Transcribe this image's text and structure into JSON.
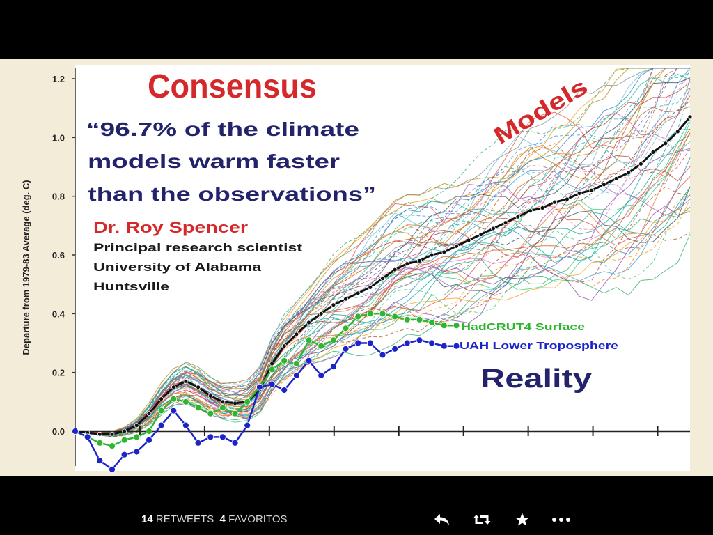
{
  "tweet": {
    "retweet_count": "14",
    "retweet_label": "RETWEETS",
    "favorite_count": "4",
    "favorite_label": "FAVORITOS"
  },
  "actions": [
    "reply-icon",
    "retweet-icon",
    "favorite-star-icon",
    "more-dots-icon"
  ],
  "colors": {
    "title_red": "#d4282a",
    "quote_navy": "#22236b",
    "models_mean": "#111111",
    "hadcrut_green": "#2fb52f",
    "uah_blue": "#1c23c8"
  },
  "image": {
    "title": "Consensus",
    "quote_lines": [
      "“96.7% of the climate",
      "models warm faster",
      "than the observations”"
    ],
    "author": "Dr. Roy Spencer",
    "affiliation_lines": [
      "Principal research scientist",
      "University of Alabama",
      "Huntsville"
    ],
    "models_label": "Models",
    "reality_label": "Reality",
    "hadcrut_label": "HadCRUT4 Surface",
    "uah_label": "UAH Lower Troposphere"
  },
  "chart_data": {
    "type": "line",
    "ylabel": "Departure from 1979-83 Average (deg. C)",
    "yticks": [
      "0.0",
      "0.2",
      "0.4",
      "0.6",
      "0.8",
      "1.0",
      "1.2"
    ],
    "ylim": [
      -0.12,
      1.24
    ],
    "x_range": [
      0,
      100
    ],
    "grid": false,
    "series": [
      {
        "name": "Models",
        "role": "multi-model mean",
        "x": [
          0,
          2,
          4,
          6,
          8,
          10,
          12,
          14,
          16,
          18,
          20,
          22,
          24,
          26,
          28,
          30,
          32,
          34,
          36,
          38,
          40,
          42,
          44,
          46,
          48,
          50,
          52,
          54,
          56,
          58,
          60,
          62,
          64,
          66,
          68,
          70,
          72,
          74,
          76,
          78,
          80,
          82,
          84,
          86,
          88,
          90,
          92,
          94,
          96,
          98,
          100
        ],
        "y": [
          0.0,
          -0.005,
          -0.01,
          -0.01,
          0.0,
          0.02,
          0.06,
          0.11,
          0.15,
          0.17,
          0.15,
          0.12,
          0.1,
          0.095,
          0.1,
          0.14,
          0.23,
          0.29,
          0.33,
          0.37,
          0.4,
          0.43,
          0.45,
          0.47,
          0.49,
          0.52,
          0.55,
          0.57,
          0.58,
          0.6,
          0.61,
          0.63,
          0.65,
          0.67,
          0.69,
          0.71,
          0.73,
          0.75,
          0.76,
          0.78,
          0.79,
          0.81,
          0.82,
          0.84,
          0.86,
          0.88,
          0.91,
          0.95,
          0.98,
          1.02,
          1.07
        ]
      },
      {
        "name": "HadCRUT4 Surface",
        "x": [
          0,
          2,
          4,
          6,
          8,
          10,
          12,
          14,
          16,
          18,
          20,
          22,
          24,
          26,
          28,
          30,
          32,
          34,
          36,
          38,
          40,
          42,
          44,
          46,
          48,
          50,
          52,
          54,
          56,
          58,
          60,
          62
        ],
        "y": [
          0.0,
          -0.02,
          -0.04,
          -0.05,
          -0.03,
          -0.02,
          0.0,
          0.07,
          0.11,
          0.1,
          0.08,
          0.06,
          0.08,
          0.06,
          0.1,
          0.15,
          0.21,
          0.24,
          0.23,
          0.31,
          0.29,
          0.31,
          0.35,
          0.39,
          0.4,
          0.4,
          0.39,
          0.38,
          0.38,
          0.37,
          0.36,
          0.36
        ]
      },
      {
        "name": "UAH Lower Troposphere",
        "x": [
          0,
          2,
          4,
          6,
          8,
          10,
          12,
          14,
          16,
          18,
          20,
          22,
          24,
          26,
          28,
          30,
          32,
          34,
          36,
          38,
          40,
          42,
          44,
          46,
          48,
          50,
          52,
          54,
          56,
          58,
          60,
          62
        ],
        "y": [
          0.0,
          -0.02,
          -0.1,
          -0.13,
          -0.08,
          -0.07,
          -0.03,
          0.02,
          0.07,
          0.02,
          -0.04,
          -0.02,
          -0.02,
          -0.04,
          0.02,
          0.15,
          0.16,
          0.14,
          0.19,
          0.24,
          0.19,
          0.22,
          0.28,
          0.3,
          0.3,
          0.26,
          0.28,
          0.3,
          0.31,
          0.3,
          0.29,
          0.29
        ]
      }
    ]
  }
}
